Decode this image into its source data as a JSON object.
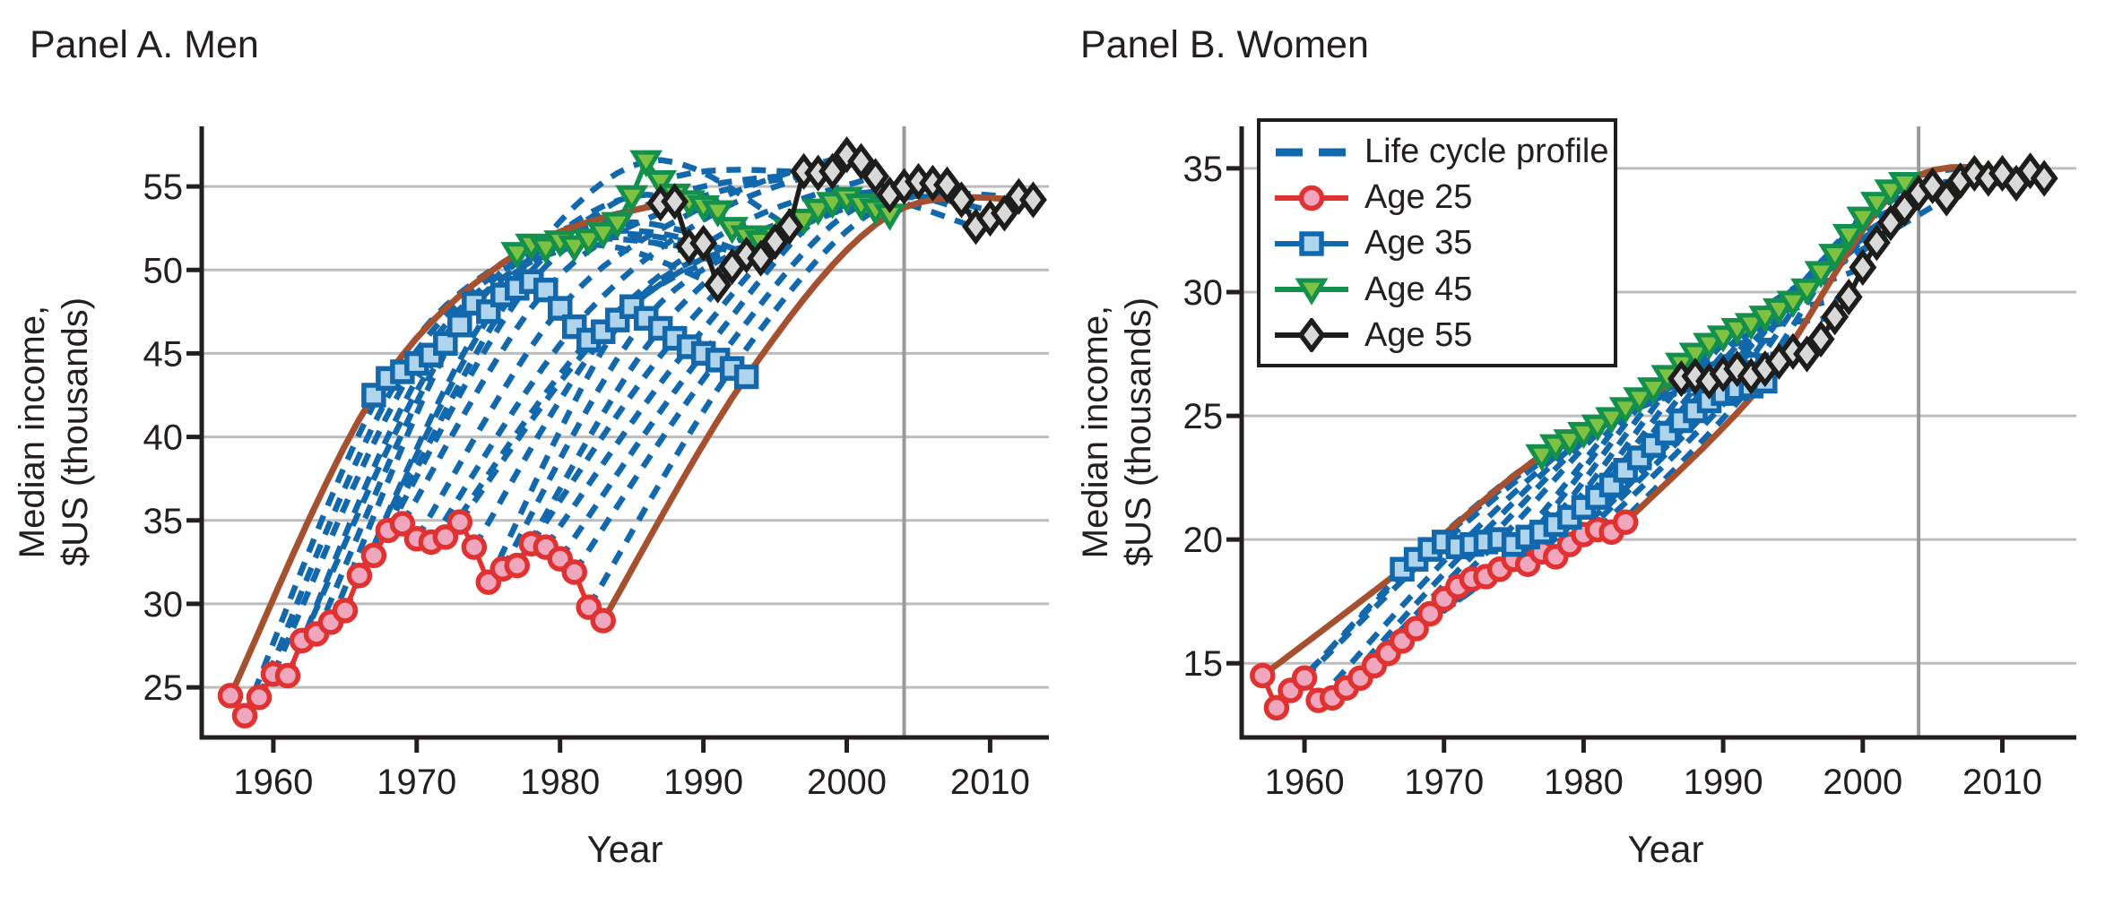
{
  "colors": {
    "blue": "#1268ad",
    "blue_fill": "#aed4ee",
    "red": "#e03231",
    "red_fill": "#f0a6bc",
    "green": "#12904c",
    "green_fill": "#7fc242",
    "black": "#1d1d1b",
    "black_fill": "#d9d9d9",
    "envelope_brown": "#a5502f",
    "gridline": "#bdbdbd",
    "vline_gray": "#999999",
    "axis": "#231f20"
  },
  "legend": {
    "items": [
      {
        "label": "Life cycle profile",
        "type": "dashed-line",
        "color": "blue"
      },
      {
        "label": "Age 25",
        "type": "marker-line",
        "marker": "circle",
        "color": "red"
      },
      {
        "label": "Age 35",
        "type": "marker-line",
        "marker": "square",
        "color": "blue"
      },
      {
        "label": "Age 45",
        "type": "marker-line",
        "marker": "triangle-down",
        "color": "green"
      },
      {
        "label": "Age 55",
        "type": "marker-line",
        "marker": "diamond",
        "color": "black"
      }
    ]
  },
  "chart_data": [
    {
      "type": "line",
      "title": "Panel A. Men",
      "xlabel": "Year",
      "ylabel": "Median income, $US (thousands)",
      "ylabel_lines": [
        "Median income,",
        "$US (thousands)"
      ],
      "xlim": [
        1955.0,
        2014.1
      ],
      "ylim": [
        22.0,
        58.6
      ],
      "x_ticks": [
        1960,
        1970,
        1980,
        1990,
        2000,
        2010
      ],
      "y_ticks": [
        25,
        30,
        35,
        40,
        45,
        50,
        55
      ],
      "grid": true,
      "vline_x": 2004,
      "cohorts": {
        "first": 1957,
        "last": 1983,
        "note": "Life-cycle profile drawn for each entry cohort through its age 25/35/45/55 values; first and last cohorts drawn solid brown, others dashed blue"
      },
      "series": [
        {
          "name": "Age 25",
          "age": 25,
          "marker": "circle",
          "color": "red",
          "start_year": 1957,
          "values": [
            24.5,
            23.3,
            24.4,
            25.8,
            25.7,
            27.8,
            28.2,
            28.9,
            29.6,
            31.7,
            32.9,
            34.4,
            34.8,
            33.9,
            33.7,
            34.0,
            34.9,
            33.4,
            31.3,
            32.1,
            32.3,
            33.6,
            33.4,
            32.7,
            31.9,
            29.8,
            29.0
          ]
        },
        {
          "name": "Age 35",
          "age": 35,
          "marker": "square",
          "color": "blue",
          "start_year": 1967,
          "values": [
            42.5,
            43.5,
            43.9,
            44.4,
            44.9,
            45.6,
            46.7,
            48.0,
            47.5,
            48.5,
            48.9,
            49.3,
            48.8,
            47.7,
            46.6,
            45.8,
            46.3,
            47.0,
            47.8,
            47.1,
            46.5,
            45.9,
            45.4,
            45.0,
            44.6,
            44.1,
            43.6
          ]
        },
        {
          "name": "Age 45",
          "age": 45,
          "marker": "triangle-down",
          "color": "green",
          "start_year": 1977,
          "values": [
            51.0,
            51.5,
            51.3,
            51.7,
            51.4,
            51.8,
            52.2,
            52.8,
            54.4,
            56.5,
            55.3,
            54.5,
            54.1,
            53.8,
            53.5,
            52.5,
            52.0,
            51.7,
            52.0,
            52.4,
            53.0,
            53.6,
            54.0,
            54.3,
            53.9,
            53.6,
            53.3
          ]
        },
        {
          "name": "Age 55",
          "age": 55,
          "marker": "diamond",
          "color": "black",
          "start_year": 1987,
          "values": [
            54.0,
            54.1,
            51.4,
            51.6,
            49.1,
            50.2,
            50.9,
            50.7,
            51.7,
            52.6,
            55.9,
            55.8,
            55.9,
            56.9,
            56.5,
            55.6,
            54.5,
            55.0,
            55.3,
            55.2,
            55.1,
            54.2,
            52.6,
            53.1,
            53.4,
            54.4,
            54.2
          ]
        }
      ]
    },
    {
      "type": "line",
      "title": "Panel B. Women",
      "xlabel": "Year",
      "ylabel": "Median income, $US (thousands)",
      "ylabel_lines": [
        "Median income,",
        "$US (thousands)"
      ],
      "xlim": [
        1955.5,
        2015.3
      ],
      "ylim": [
        12.0,
        36.7
      ],
      "x_ticks": [
        1960,
        1970,
        1980,
        1990,
        2000,
        2010
      ],
      "y_ticks": [
        15,
        20,
        25,
        30,
        35
      ],
      "grid": true,
      "vline_x": 2004,
      "cohorts": {
        "first": 1957,
        "last": 1983,
        "note": "Life-cycle profile drawn for each entry cohort through its age 25/35/45/55 values; first and last cohorts drawn solid brown, others dashed blue"
      },
      "series": [
        {
          "name": "Age 25",
          "age": 25,
          "marker": "circle",
          "color": "red",
          "start_year": 1957,
          "values": [
            14.5,
            13.2,
            13.9,
            14.4,
            13.5,
            13.6,
            14.0,
            14.4,
            14.9,
            15.4,
            15.9,
            16.4,
            17.0,
            17.6,
            18.1,
            18.4,
            18.5,
            18.8,
            19.2,
            19.0,
            19.5,
            19.3,
            19.8,
            20.2,
            20.4,
            20.3,
            20.7
          ]
        },
        {
          "name": "Age 35",
          "age": 35,
          "marker": "square",
          "color": "blue",
          "start_year": 1967,
          "values": [
            18.8,
            19.2,
            19.6,
            19.9,
            19.7,
            19.8,
            19.9,
            20.0,
            19.8,
            20.1,
            20.3,
            20.6,
            20.9,
            21.3,
            21.7,
            22.2,
            22.8,
            23.3,
            23.8,
            24.3,
            24.8,
            25.2,
            25.6,
            25.9,
            26.1,
            26.2,
            26.4
          ]
        },
        {
          "name": "Age 45",
          "age": 45,
          "marker": "triangle-down",
          "color": "green",
          "start_year": 1977,
          "values": [
            23.4,
            23.8,
            24.0,
            24.3,
            24.6,
            24.9,
            25.3,
            25.7,
            26.1,
            26.6,
            27.1,
            27.5,
            27.9,
            28.2,
            28.5,
            28.7,
            29.0,
            29.3,
            29.6,
            30.1,
            30.8,
            31.5,
            32.3,
            33.0,
            33.6,
            34.1,
            34.4
          ]
        },
        {
          "name": "Age 55",
          "age": 55,
          "marker": "diamond",
          "color": "black",
          "start_year": 1987,
          "values": [
            26.5,
            26.6,
            26.4,
            26.7,
            26.9,
            26.6,
            26.9,
            27.2,
            27.6,
            27.5,
            28.1,
            29.0,
            29.8,
            31.0,
            32.0,
            32.8,
            33.4,
            34.0,
            34.3,
            33.8,
            34.5,
            34.8,
            34.6,
            34.8,
            34.4,
            34.9,
            34.6
          ]
        }
      ]
    }
  ]
}
